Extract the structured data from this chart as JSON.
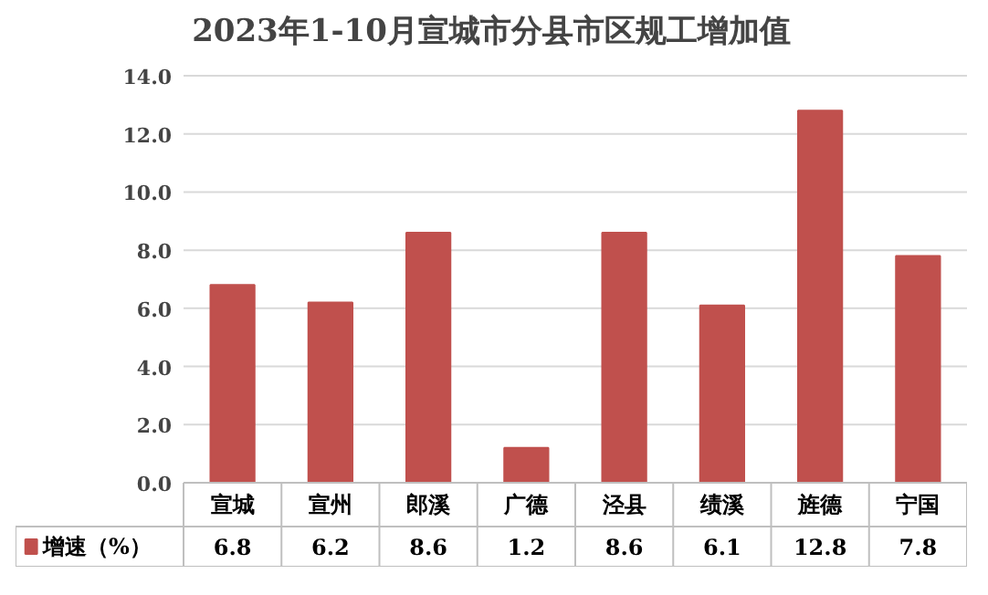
{
  "chart_data": {
    "type": "bar",
    "title": "2023年1-10月宣城市分县市区规工增加值",
    "categories": [
      "宣城",
      "宣州",
      "郎溪",
      "广德",
      "泾县",
      "绩溪",
      "旌德",
      "宁国"
    ],
    "series": [
      {
        "name": "增速（%）",
        "color": "#c0504d",
        "values": [
          6.8,
          6.2,
          8.6,
          1.2,
          8.6,
          6.1,
          12.8,
          7.8
        ]
      }
    ],
    "ylim": [
      0,
      14
    ],
    "yticks": [
      {
        "value": 0,
        "label": "0.0"
      },
      {
        "value": 2,
        "label": "2.0"
      },
      {
        "value": 4,
        "label": "4.0"
      },
      {
        "value": 6,
        "label": "6.0"
      },
      {
        "value": 8,
        "label": "8.0"
      },
      {
        "value": 10,
        "label": "10.0"
      },
      {
        "value": 12,
        "label": "12.0"
      },
      {
        "value": 14,
        "label": "14.0"
      }
    ],
    "grid": "y",
    "legend": "bottom",
    "data_labels": true
  }
}
